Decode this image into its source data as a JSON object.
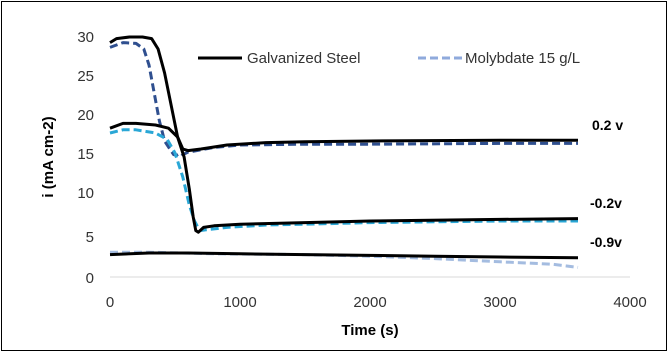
{
  "chart_data": {
    "type": "line",
    "title": "",
    "xlabel": "Time (s)",
    "ylabel": "i (mA cm-2)",
    "xlim": [
      0,
      4000
    ],
    "ylim": [
      0,
      30
    ],
    "x_ticks": [
      "0",
      "1000",
      "2000",
      "3000",
      "4000"
    ],
    "y_ticks": [
      "0",
      "5",
      "10",
      "15",
      "20",
      "25",
      "30"
    ],
    "grid": false,
    "legend_position": "top",
    "legend": [
      {
        "name": "Galvanized Steel",
        "style": "solid",
        "color": "#000000"
      },
      {
        "name": "Molybdate 15 g/L",
        "style": "dashed",
        "color": "#8faadc"
      }
    ],
    "annotations": [
      {
        "text": "0.2 v",
        "x": 3700,
        "y": 18.5
      },
      {
        "text": "-0.2v",
        "x": 3700,
        "y": 8.5
      },
      {
        "text": "-0.9v",
        "x": 3700,
        "y": 3.6
      }
    ],
    "series": [
      {
        "name": "Galvanized Steel",
        "potential": "0.2 v",
        "color": "#000000",
        "dashed": false,
        "points": [
          [
            0,
            29.3
          ],
          [
            50,
            29.8
          ],
          [
            150,
            30
          ],
          [
            250,
            30
          ],
          [
            320,
            29.8
          ],
          [
            370,
            28.5
          ],
          [
            420,
            25.5
          ],
          [
            470,
            21.5
          ],
          [
            520,
            17.5
          ],
          [
            560,
            16
          ],
          [
            600,
            15.8
          ],
          [
            700,
            16
          ],
          [
            900,
            16.5
          ],
          [
            1200,
            16.8
          ],
          [
            1500,
            16.9
          ],
          [
            2000,
            17
          ],
          [
            3000,
            17.1
          ],
          [
            3600,
            17.1
          ]
        ]
      },
      {
        "name": "Molybdate 15 g/L",
        "potential": "0.2 v",
        "color": "#2f4f8f",
        "dashed": true,
        "points": [
          [
            0,
            28.7
          ],
          [
            100,
            29.3
          ],
          [
            200,
            29.2
          ],
          [
            260,
            28.5
          ],
          [
            300,
            26.5
          ],
          [
            340,
            23
          ],
          [
            380,
            19.5
          ],
          [
            420,
            17
          ],
          [
            460,
            16
          ],
          [
            490,
            15.3
          ],
          [
            510,
            15.2
          ],
          [
            540,
            15.5
          ],
          [
            560,
            15.3
          ],
          [
            600,
            15.6
          ],
          [
            800,
            16.2
          ],
          [
            1000,
            16.5
          ],
          [
            1500,
            16.6
          ],
          [
            2000,
            16.6
          ],
          [
            3000,
            16.7
          ],
          [
            3600,
            16.7
          ]
        ]
      },
      {
        "name": "Galvanized Steel",
        "potential": "-0.2v",
        "color": "#000000",
        "dashed": false,
        "points": [
          [
            0,
            18.6
          ],
          [
            100,
            19.2
          ],
          [
            200,
            19.2
          ],
          [
            350,
            19
          ],
          [
            450,
            18.6
          ],
          [
            520,
            17.5
          ],
          [
            570,
            15
          ],
          [
            610,
            11
          ],
          [
            640,
            7.5
          ],
          [
            660,
            5.8
          ],
          [
            680,
            5.6
          ],
          [
            720,
            6.2
          ],
          [
            800,
            6.4
          ],
          [
            1000,
            6.6
          ],
          [
            1500,
            6.8
          ],
          [
            2000,
            7
          ],
          [
            3000,
            7.2
          ],
          [
            3600,
            7.3
          ]
        ]
      },
      {
        "name": "Molybdate 15 g/L",
        "potential": "-0.2v",
        "color": "#2aa7d6",
        "dashed": true,
        "points": [
          [
            0,
            18
          ],
          [
            100,
            18.4
          ],
          [
            200,
            18.4
          ],
          [
            350,
            18
          ],
          [
            440,
            17.2
          ],
          [
            500,
            15.5
          ],
          [
            560,
            12.5
          ],
          [
            610,
            9
          ],
          [
            650,
            7
          ],
          [
            690,
            5.8
          ],
          [
            740,
            5.9
          ],
          [
            900,
            6.2
          ],
          [
            1200,
            6.5
          ],
          [
            1500,
            6.6
          ],
          [
            2000,
            6.8
          ],
          [
            3000,
            7
          ],
          [
            3600,
            7
          ]
        ]
      },
      {
        "name": "Galvanized Steel",
        "potential": "-0.9v",
        "color": "#000000",
        "dashed": false,
        "points": [
          [
            0,
            2.8
          ],
          [
            300,
            3
          ],
          [
            600,
            3
          ],
          [
            1000,
            2.9
          ],
          [
            1500,
            2.8
          ],
          [
            2000,
            2.7
          ],
          [
            2500,
            2.6
          ],
          [
            3000,
            2.5
          ],
          [
            3600,
            2.4
          ]
        ]
      },
      {
        "name": "Molybdate 15 g/L",
        "potential": "-0.9v",
        "color": "#a4bce0",
        "dashed": true,
        "points": [
          [
            0,
            3.1
          ],
          [
            300,
            3.1
          ],
          [
            800,
            2.9
          ],
          [
            1500,
            2.8
          ],
          [
            2000,
            2.6
          ],
          [
            2500,
            2.3
          ],
          [
            3000,
            1.9
          ],
          [
            3400,
            1.6
          ],
          [
            3600,
            1.2
          ]
        ]
      }
    ]
  }
}
